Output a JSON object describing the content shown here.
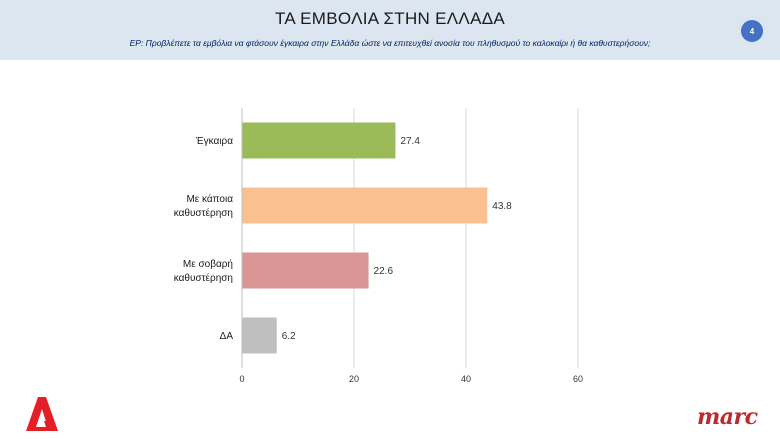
{
  "header": {
    "title": "ΤΑ ΕΜΒΟΛΙΑ ΣΤΗΝ ΕΛΛΑΔΑ",
    "question": "ΕΡ:  Προβλέπετε τα εμβόλια να φτάσουν έγκαιρα στην Ελλάδα ώστε να επιτευχθεί ανοσία του πληθυσμού το καλοκαίρι ή θα καθυστερήσουν;",
    "page_number": "4"
  },
  "brand": {
    "right_logo_text": "marc",
    "left_logo_color": "#e41f26"
  },
  "chart_data": {
    "type": "bar",
    "orientation": "horizontal",
    "categories": [
      [
        "Έγκαιρα"
      ],
      [
        "Με κάποια",
        "καθυστέρηση"
      ],
      [
        "Με σοβαρή",
        "καθυστέρηση"
      ],
      [
        "ΔΑ"
      ]
    ],
    "values": [
      27.4,
      43.8,
      22.6,
      6.2
    ],
    "value_labels": [
      "27.4",
      "43.8",
      "22.6",
      "6.2"
    ],
    "colors": [
      "#9bbb59",
      "#fac090",
      "#d99694",
      "#bfbfbf"
    ],
    "xlim": [
      0,
      60
    ],
    "xticks": [
      0,
      20,
      40,
      60
    ],
    "grid": true,
    "legend": "none"
  }
}
